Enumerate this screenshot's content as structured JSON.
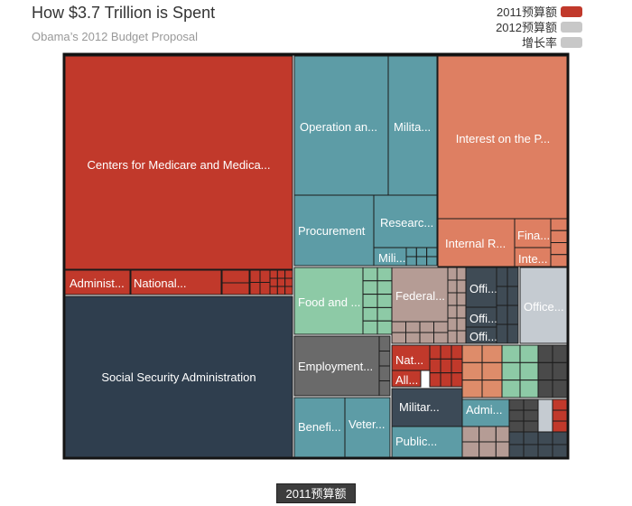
{
  "header": {
    "title": "How $3.7 Trillion is Spent",
    "subtitle": "Obama’s 2012 Budget Proposal"
  },
  "legend": [
    {
      "label": "2011预算额",
      "color": "#c1392b"
    },
    {
      "label": "2012预算额",
      "color": "#c8c8c8"
    },
    {
      "label": "增长率",
      "color": "#c8c8c8"
    }
  ],
  "controls": {
    "metric_button": "2011预算额"
  },
  "chart_data": {
    "type": "treemap",
    "title": "How $3.7 Trillion is Spent",
    "subtitle": "Obama’s 2012 Budget Proposal",
    "colors": {
      "health": "#c1392b",
      "social_security": "#2f3e4e",
      "defense": "#5d9ca6",
      "interest": "#de7f62",
      "food": "#8dcaa6",
      "employment": "#6a6a6a",
      "veterans": "#5d9ca6",
      "treasury": "#b59c95",
      "office": "#3f4b55",
      "office_light": "#c5cbd1",
      "military_grey": "#3c4a57",
      "public": "#5d9ca6",
      "misc_salmon": "#de8c6a",
      "misc_green": "#8dcaa6",
      "misc_dark": "#4a4a4a"
    },
    "labeled_cells": [
      "Centers for Medicare and Medica...",
      "Administ...",
      "National...",
      "Social Security Administration",
      "Operation an...",
      "Milita...",
      "Interest on the P...",
      "Procurement",
      "Researc...",
      "Mili...",
      "Internal R...",
      "Fina...",
      "Inte...",
      "Food and ...",
      "Federal...",
      "Offi...",
      "Offi...",
      "Offi...",
      "Office...",
      "Employment...",
      "Nat...",
      "All...",
      "Militar...",
      "Benefi...",
      "Veter...",
      "Admi...",
      "Public..."
    ]
  }
}
